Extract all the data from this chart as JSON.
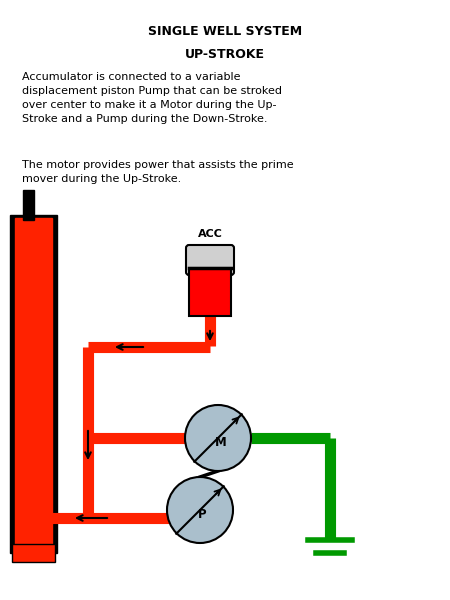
{
  "title1": "SINGLE WELL SYSTEM",
  "title2": "UP-STROKE",
  "body1": "Accumulator is connected to a variable\ndisplacement piston Pump that can be stroked\nover center to make it a Motor during the Up-\nStroke and a Pump during the Down-Stroke.",
  "body2": "The motor provides power that assists the prime\nmover during the Up-Stroke.",
  "bg": "#ffffff",
  "red": "#ff2200",
  "green": "#009900",
  "acc_red": "#ff0000",
  "acc_dome_color": "#d8d8d8",
  "pump_color": "#aabfcc",
  "lw": 8
}
